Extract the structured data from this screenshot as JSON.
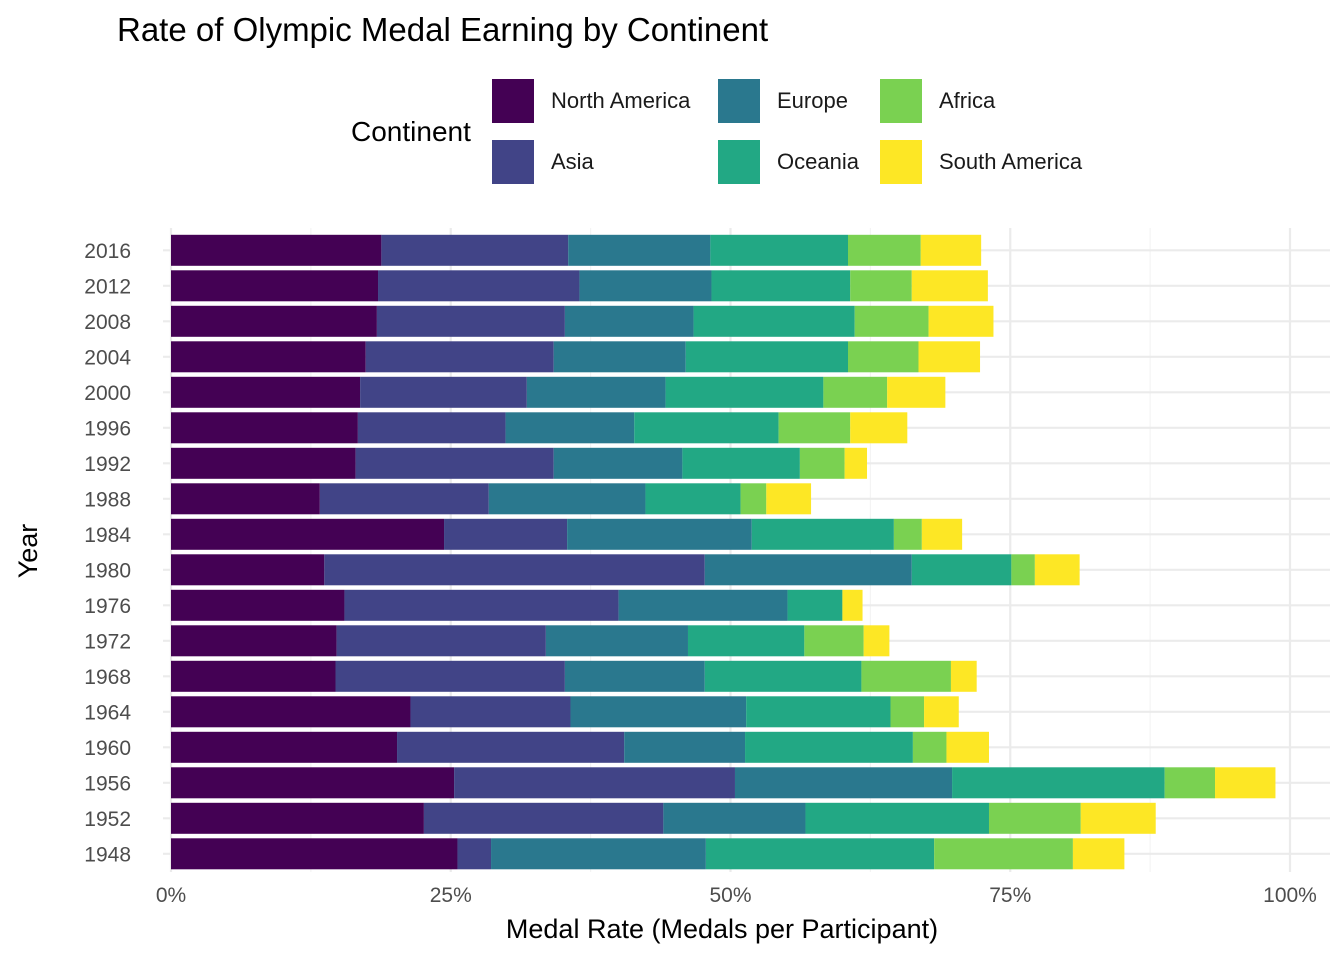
{
  "chart_data": {
    "type": "bar",
    "orientation": "horizontal",
    "stacked": true,
    "title": "Rate of Olympic Medal Earning by Continent",
    "xlabel": "Medal Rate (Medals per Participant)",
    "ylabel": "Year",
    "xlim": [
      0,
      1
    ],
    "x_ticks": [
      "0%",
      "25%",
      "50%",
      "75%",
      "100%"
    ],
    "grid": true,
    "legend": {
      "title": "Continent",
      "position": "top",
      "entries": [
        "North America",
        "Europe",
        "Africa",
        "Asia",
        "Oceania",
        "South America"
      ]
    },
    "categories": [
      "2016",
      "2012",
      "2008",
      "2004",
      "2000",
      "1996",
      "1992",
      "1988",
      "1984",
      "1980",
      "1976",
      "1972",
      "1968",
      "1964",
      "1960",
      "1956",
      "1952",
      "1948"
    ],
    "series": [
      {
        "name": "North America",
        "color": "#440154",
        "values": [
          0.188,
          0.185,
          0.184,
          0.174,
          0.169,
          0.167,
          0.165,
          0.133,
          0.244,
          0.137,
          0.155,
          0.148,
          0.147,
          0.214,
          0.202,
          0.253,
          0.226,
          0.256
        ]
      },
      {
        "name": "Asia",
        "color": "#414487",
        "values": [
          0.167,
          0.18,
          0.168,
          0.168,
          0.149,
          0.132,
          0.177,
          0.151,
          0.11,
          0.34,
          0.245,
          0.187,
          0.205,
          0.143,
          0.203,
          0.251,
          0.214,
          0.03
        ]
      },
      {
        "name": "Europe",
        "color": "#2a788e",
        "values": [
          0.127,
          0.118,
          0.115,
          0.118,
          0.124,
          0.115,
          0.115,
          0.14,
          0.165,
          0.185,
          0.151,
          0.127,
          0.125,
          0.157,
          0.108,
          0.194,
          0.127,
          0.192
        ]
      },
      {
        "name": "Oceania",
        "color": "#22a884",
        "values": [
          0.123,
          0.124,
          0.144,
          0.145,
          0.141,
          0.129,
          0.105,
          0.085,
          0.127,
          0.089,
          0.049,
          0.104,
          0.14,
          0.129,
          0.15,
          0.19,
          0.164,
          0.204
        ]
      },
      {
        "name": "Africa",
        "color": "#7ad151",
        "values": [
          0.065,
          0.055,
          0.066,
          0.063,
          0.057,
          0.064,
          0.04,
          0.023,
          0.025,
          0.021,
          0.0,
          0.053,
          0.08,
          0.03,
          0.03,
          0.045,
          0.082,
          0.124
        ]
      },
      {
        "name": "South America",
        "color": "#fde725",
        "values": [
          0.054,
          0.068,
          0.058,
          0.055,
          0.052,
          0.051,
          0.02,
          0.04,
          0.036,
          0.04,
          0.018,
          0.023,
          0.023,
          0.031,
          0.038,
          0.054,
          0.067,
          0.046
        ]
      }
    ]
  }
}
